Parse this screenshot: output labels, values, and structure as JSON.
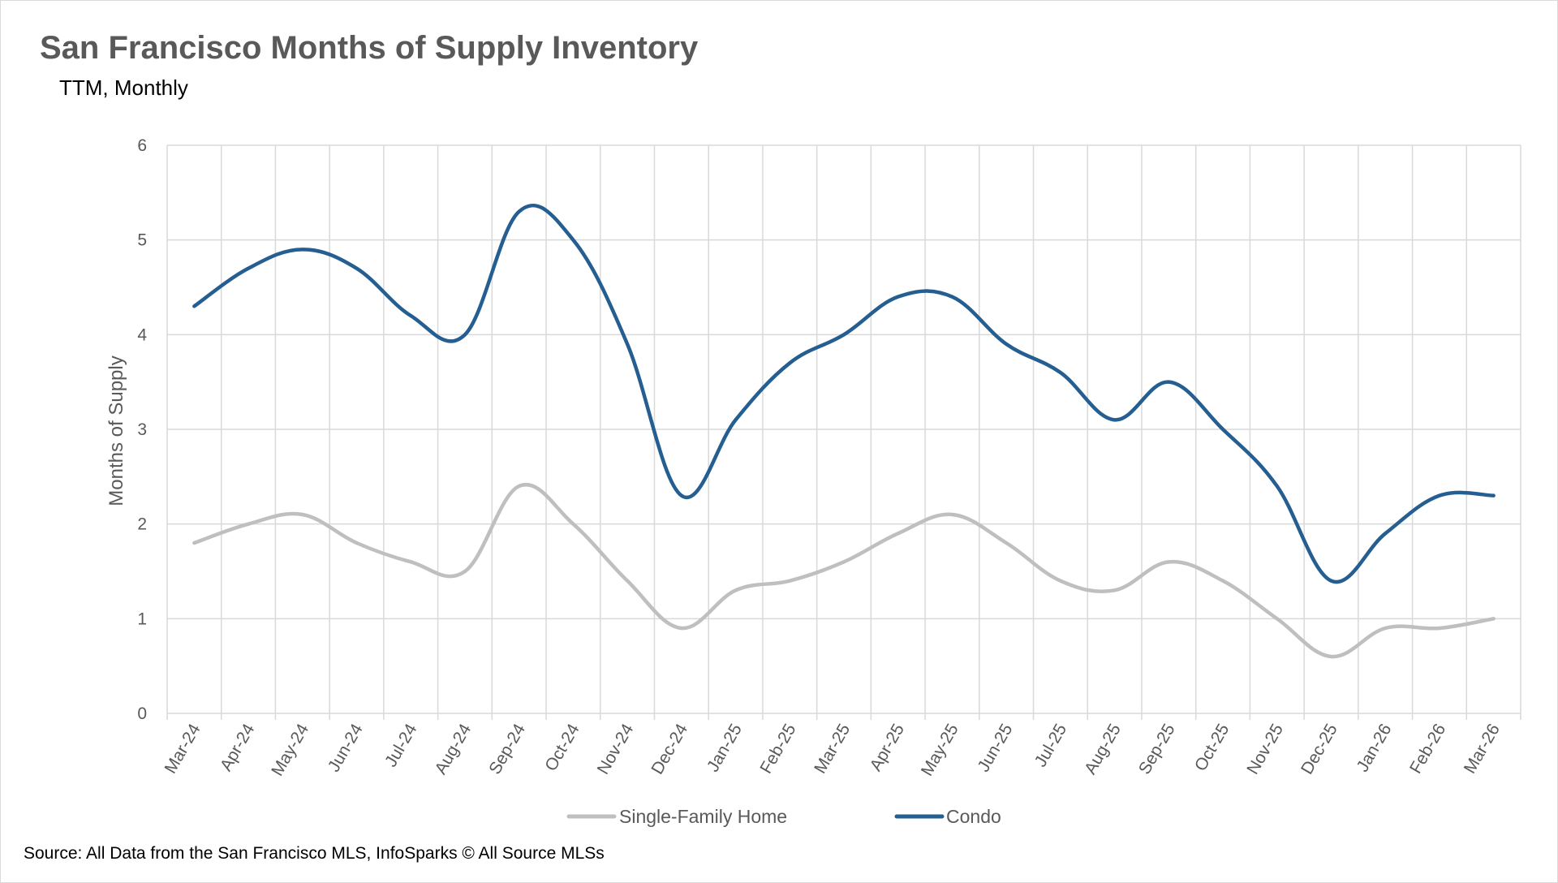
{
  "chart_data": {
    "type": "line",
    "title": "San Francisco Months of Supply Inventory",
    "subtitle": "TTM, Monthly",
    "xlabel": "",
    "ylabel": "Months of Supply",
    "ylim": [
      0,
      6
    ],
    "yticks": [
      "0",
      "1",
      "2",
      "3",
      "4",
      "5",
      "6"
    ],
    "grid": true,
    "smooth": true,
    "legend_position": "bottom",
    "categories": [
      "Mar-24",
      "Apr-24",
      "May-24",
      "Jun-24",
      "Jul-24",
      "Aug-24",
      "Sep-24",
      "Oct-24",
      "Nov-24",
      "Dec-24",
      "Jan-25",
      "Feb-25",
      "Mar-25",
      "Apr-25",
      "May-25",
      "Jun-25",
      "Jul-25",
      "Aug-25",
      "Sep-25",
      "Oct-25",
      "Nov-25",
      "Dec-25",
      "Jan-26",
      "Feb-26",
      "Mar-26"
    ],
    "series": [
      {
        "name": "Single-Family Home",
        "color": "#bfbfbf",
        "values": [
          1.8,
          2.0,
          2.1,
          1.8,
          1.6,
          1.5,
          2.4,
          2.0,
          1.4,
          0.9,
          1.3,
          1.4,
          1.6,
          1.9,
          2.1,
          1.8,
          1.4,
          1.3,
          1.6,
          1.4,
          1.0,
          0.6,
          0.9,
          0.9,
          1.0
        ]
      },
      {
        "name": "Condo",
        "color": "#255e91",
        "values": [
          4.3,
          4.7,
          4.9,
          4.7,
          4.2,
          4.0,
          5.3,
          5.0,
          3.9,
          2.3,
          3.1,
          3.7,
          4.0,
          4.4,
          4.4,
          3.9,
          3.6,
          3.1,
          3.5,
          3.0,
          2.4,
          1.4,
          1.9,
          2.3,
          2.3
        ]
      }
    ],
    "source": "Source: All Data from the San Francisco MLS, InfoSparks © All Source MLSs"
  }
}
